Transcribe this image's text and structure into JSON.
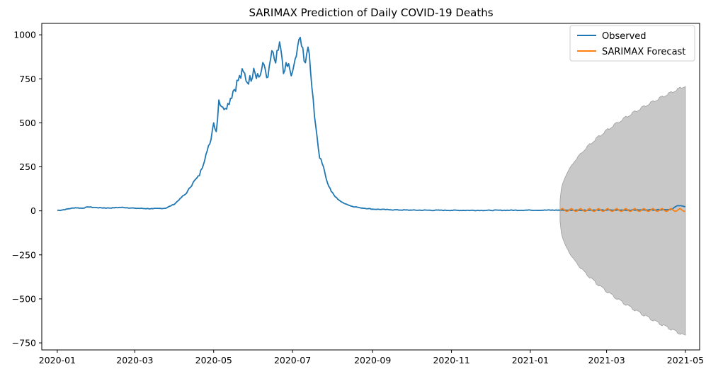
{
  "chart_data": {
    "type": "line",
    "title": "SARIMAX Prediction of Daily COVID-19 Deaths",
    "xlabel": "",
    "ylabel": "",
    "x_ticks": [
      "2020-01",
      "2020-03",
      "2020-05",
      "2020-07",
      "2020-09",
      "2020-11",
      "2021-01",
      "2021-03",
      "2021-05"
    ],
    "y_ticks": [
      -750,
      -500,
      -250,
      0,
      250,
      500,
      750,
      1000
    ],
    "xlim": [
      "2019-12-20",
      "2021-05-12"
    ],
    "ylim": [
      -790,
      1065
    ],
    "grid": false,
    "legend_position": "top-right",
    "colors": {
      "observed": "#1f77b4",
      "forecast": "#ff7f0e",
      "interval": "#c8c8c8",
      "interval_edge": "#9e9e9e"
    },
    "series": [
      {
        "name": "Observed",
        "color": "#1f77b4",
        "points": [
          [
            "2020-01-01",
            3
          ],
          [
            "2020-01-05",
            5
          ],
          [
            "2020-01-10",
            12
          ],
          [
            "2020-01-15",
            18
          ],
          [
            "2020-01-20",
            15
          ],
          [
            "2020-01-25",
            22
          ],
          [
            "2020-02-01",
            18
          ],
          [
            "2020-02-10",
            16
          ],
          [
            "2020-02-20",
            20
          ],
          [
            "2020-03-01",
            15
          ],
          [
            "2020-03-15",
            12
          ],
          [
            "2020-03-25",
            15
          ],
          [
            "2020-04-01",
            40
          ],
          [
            "2020-04-05",
            70
          ],
          [
            "2020-04-10",
            100
          ],
          [
            "2020-04-15",
            160
          ],
          [
            "2020-04-20",
            200
          ],
          [
            "2020-04-25",
            320
          ],
          [
            "2020-04-28",
            380
          ],
          [
            "2020-05-01",
            500
          ],
          [
            "2020-05-03",
            450
          ],
          [
            "2020-05-05",
            630
          ],
          [
            "2020-05-08",
            590
          ],
          [
            "2020-05-12",
            610
          ],
          [
            "2020-05-16",
            680
          ],
          [
            "2020-05-20",
            740
          ],
          [
            "2020-05-24",
            790
          ],
          [
            "2020-05-28",
            720
          ],
          [
            "2020-06-01",
            810
          ],
          [
            "2020-06-05",
            760
          ],
          [
            "2020-06-09",
            830
          ],
          [
            "2020-06-12",
            760
          ],
          [
            "2020-06-15",
            910
          ],
          [
            "2020-06-18",
            840
          ],
          [
            "2020-06-21",
            960
          ],
          [
            "2020-06-24",
            780
          ],
          [
            "2020-06-27",
            820
          ],
          [
            "2020-07-01",
            790
          ],
          [
            "2020-07-04",
            880
          ],
          [
            "2020-07-07",
            985
          ],
          [
            "2020-07-10",
            850
          ],
          [
            "2020-07-13",
            930
          ],
          [
            "2020-07-16",
            700
          ],
          [
            "2020-07-19",
            480
          ],
          [
            "2020-07-22",
            300
          ],
          [
            "2020-07-25",
            250
          ],
          [
            "2020-07-28",
            160
          ],
          [
            "2020-07-31",
            110
          ],
          [
            "2020-08-03",
            80
          ],
          [
            "2020-08-08",
            50
          ],
          [
            "2020-08-15",
            28
          ],
          [
            "2020-08-22",
            18
          ],
          [
            "2020-09-01",
            10
          ],
          [
            "2020-09-15",
            6
          ],
          [
            "2020-10-01",
            4
          ],
          [
            "2020-11-01",
            3
          ],
          [
            "2020-12-01",
            3
          ],
          [
            "2021-01-01",
            4
          ],
          [
            "2021-02-01",
            4
          ],
          [
            "2021-03-01",
            4
          ],
          [
            "2021-04-01",
            5
          ],
          [
            "2021-04-20",
            8
          ],
          [
            "2021-04-25",
            30
          ],
          [
            "2021-05-01",
            25
          ]
        ]
      },
      {
        "name": "SARIMAX Forecast",
        "color": "#ff7f0e",
        "start": "2021-01-24",
        "end": "2021-05-01",
        "baseline": 4,
        "amplitude": 7,
        "period_days": 7
      }
    ],
    "confidence_interval": {
      "start": "2021-01-24",
      "end": "2021-05-01",
      "start_halfwidth": 60,
      "end_halfwidth": 710,
      "center": 0
    }
  }
}
